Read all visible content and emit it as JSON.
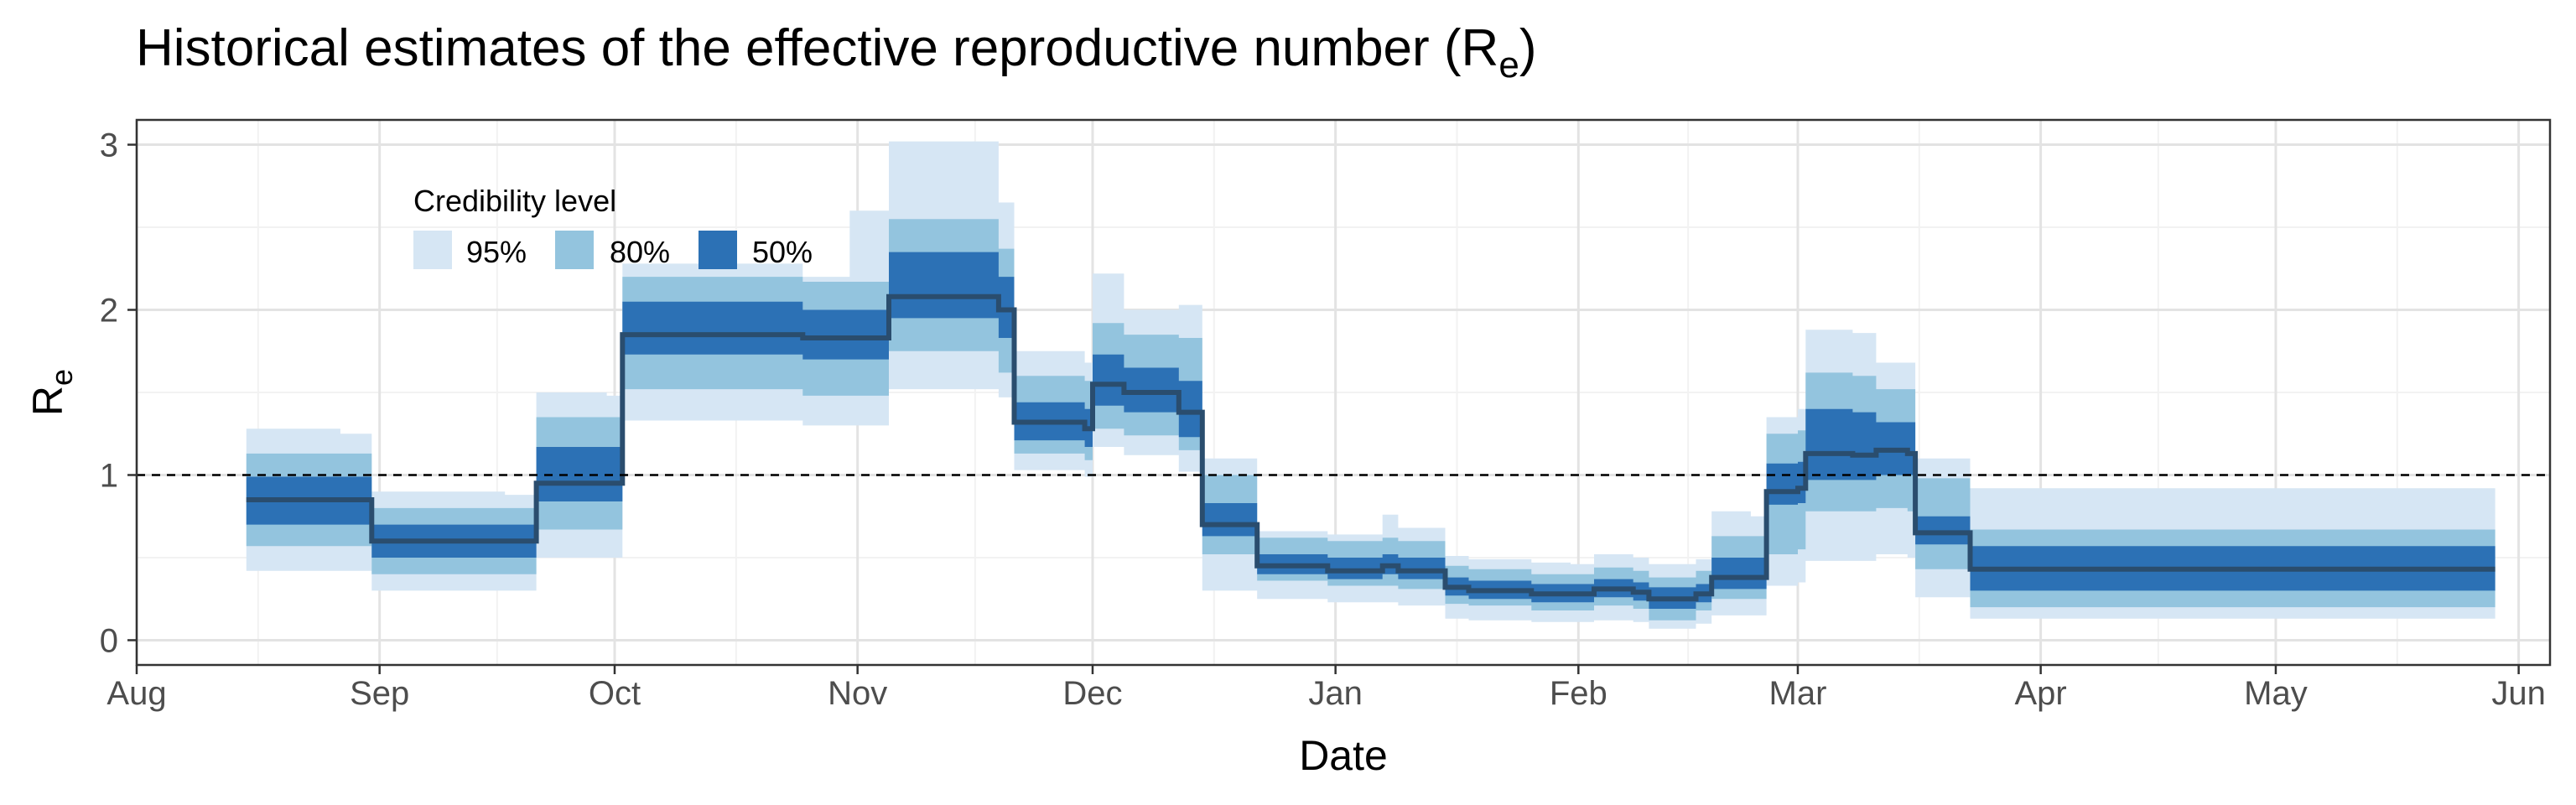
{
  "chart_data": {
    "type": "area",
    "title": "Historical estimates of the effective reproductive number (R",
    "title_subscript": "e",
    "title_close": ")",
    "xlabel": "Date",
    "ylabel": "R",
    "ylabel_subscript": "e",
    "x_tick_labels": [
      "Aug",
      "Sep",
      "Oct",
      "Nov",
      "Dec",
      "Jan",
      "Feb",
      "Mar",
      "Apr",
      "May",
      "Jun"
    ],
    "y_tick_labels": [
      "0",
      "1",
      "2",
      "3"
    ],
    "y_ticks": [
      0,
      1,
      2,
      3
    ],
    "ylim": [
      -0.15,
      3.15
    ],
    "xlim": [
      "2020-08-01",
      "2021-06-05"
    ],
    "grid": true,
    "reference_line": {
      "y": 1,
      "style": "dashed"
    },
    "legend": {
      "title": "Credibility level",
      "position": "top-left",
      "items": [
        {
          "label": "95%",
          "color": "#d6e6f4"
        },
        {
          "label": "80%",
          "color": "#93c4de"
        },
        {
          "label": "50%",
          "color": "#2c71b5"
        }
      ]
    },
    "colors": {
      "band95": "#d6e6f4",
      "band80": "#93c4de",
      "band50": "#2c71b5",
      "median": "#2a4d6e"
    },
    "series": [
      {
        "dates": [
          "2020-08-15",
          "2020-08-27",
          "2020-08-31",
          "2020-09-17",
          "2020-09-21",
          "2020-09-30",
          "2020-10-02",
          "2020-10-25",
          "2020-10-31",
          "2020-11-05",
          "2020-11-19",
          "2020-11-21",
          "2020-11-30",
          "2020-12-01",
          "2020-12-05",
          "2020-12-12",
          "2020-12-15",
          "2020-12-22",
          "2020-12-24",
          "2020-12-31",
          "2021-01-07",
          "2021-01-09",
          "2021-01-15",
          "2021-01-18",
          "2021-01-26",
          "2021-01-31",
          "2021-02-03",
          "2021-02-08",
          "2021-02-10",
          "2021-02-16",
          "2021-02-18",
          "2021-02-23",
          "2021-02-25",
          "2021-03-01",
          "2021-03-02",
          "2021-03-08",
          "2021-03-11",
          "2021-03-15",
          "2021-03-16",
          "2021-03-22",
          "2021-03-23",
          "2021-05-29"
        ],
        "median": [
          0.85,
          0.85,
          0.6,
          0.6,
          0.95,
          0.95,
          1.85,
          1.83,
          1.83,
          2.08,
          2.0,
          1.32,
          1.28,
          1.55,
          1.5,
          1.38,
          0.7,
          0.45,
          0.45,
          0.42,
          0.45,
          0.42,
          0.32,
          0.3,
          0.28,
          0.28,
          0.31,
          0.29,
          0.25,
          0.28,
          0.38,
          0.38,
          0.9,
          0.92,
          1.13,
          1.12,
          1.15,
          1.13,
          0.65,
          0.65,
          0.43,
          0.43
        ],
        "lo50": [
          0.7,
          0.7,
          0.5,
          0.5,
          0.84,
          0.84,
          1.73,
          1.7,
          1.7,
          1.95,
          1.83,
          1.21,
          1.17,
          1.42,
          1.38,
          1.23,
          0.63,
          0.4,
          0.4,
          0.37,
          0.4,
          0.37,
          0.27,
          0.25,
          0.23,
          0.23,
          0.26,
          0.24,
          0.19,
          0.23,
          0.31,
          0.31,
          0.82,
          0.83,
          0.97,
          0.97,
          1.0,
          1.0,
          0.58,
          0.58,
          0.3,
          0.3
        ],
        "hi50": [
          0.99,
          0.99,
          0.7,
          0.7,
          1.17,
          1.17,
          2.05,
          2.0,
          2.0,
          2.35,
          2.2,
          1.44,
          1.4,
          1.73,
          1.65,
          1.57,
          0.83,
          0.52,
          0.52,
          0.5,
          0.52,
          0.5,
          0.38,
          0.36,
          0.34,
          0.34,
          0.37,
          0.35,
          0.32,
          0.34,
          0.5,
          0.5,
          1.07,
          1.08,
          1.4,
          1.38,
          1.32,
          1.32,
          0.75,
          0.75,
          0.57,
          0.57
        ],
        "lo80": [
          0.57,
          0.57,
          0.4,
          0.4,
          0.67,
          0.67,
          1.52,
          1.48,
          1.48,
          1.75,
          1.62,
          1.13,
          1.09,
          1.28,
          1.24,
          1.15,
          0.52,
          0.36,
          0.36,
          0.33,
          0.33,
          0.31,
          0.22,
          0.21,
          0.18,
          0.18,
          0.21,
          0.19,
          0.12,
          0.18,
          0.25,
          0.25,
          0.52,
          0.55,
          0.78,
          0.78,
          0.8,
          0.78,
          0.43,
          0.43,
          0.2,
          0.2
        ],
        "hi80": [
          1.13,
          1.13,
          0.8,
          0.8,
          1.35,
          1.35,
          2.2,
          2.17,
          2.17,
          2.55,
          2.37,
          1.6,
          1.57,
          1.92,
          1.85,
          1.83,
          1.0,
          0.62,
          0.62,
          0.6,
          0.62,
          0.6,
          0.45,
          0.43,
          0.4,
          0.4,
          0.44,
          0.42,
          0.38,
          0.42,
          0.63,
          0.63,
          1.25,
          1.27,
          1.62,
          1.6,
          1.52,
          1.52,
          0.98,
          0.98,
          0.67,
          0.67
        ],
        "lo95": [
          0.42,
          0.42,
          0.3,
          0.3,
          0.5,
          0.5,
          1.33,
          1.3,
          1.3,
          1.52,
          1.47,
          1.03,
          0.99,
          1.17,
          1.12,
          1.02,
          0.3,
          0.25,
          0.25,
          0.23,
          0.23,
          0.21,
          0.13,
          0.12,
          0.11,
          0.11,
          0.12,
          0.11,
          0.07,
          0.1,
          0.15,
          0.15,
          0.33,
          0.35,
          0.48,
          0.48,
          0.52,
          0.5,
          0.26,
          0.26,
          0.13,
          0.12
        ],
        "hi95": [
          1.28,
          1.25,
          0.9,
          0.88,
          1.5,
          1.48,
          2.28,
          2.2,
          2.6,
          3.02,
          2.65,
          1.75,
          1.68,
          2.22,
          2.0,
          2.03,
          1.1,
          0.66,
          0.66,
          0.64,
          0.76,
          0.68,
          0.51,
          0.49,
          0.47,
          0.46,
          0.52,
          0.5,
          0.46,
          0.49,
          0.78,
          0.75,
          1.35,
          1.4,
          1.88,
          1.86,
          1.68,
          1.68,
          1.1,
          1.1,
          0.92,
          0.8
        ]
      }
    ]
  }
}
